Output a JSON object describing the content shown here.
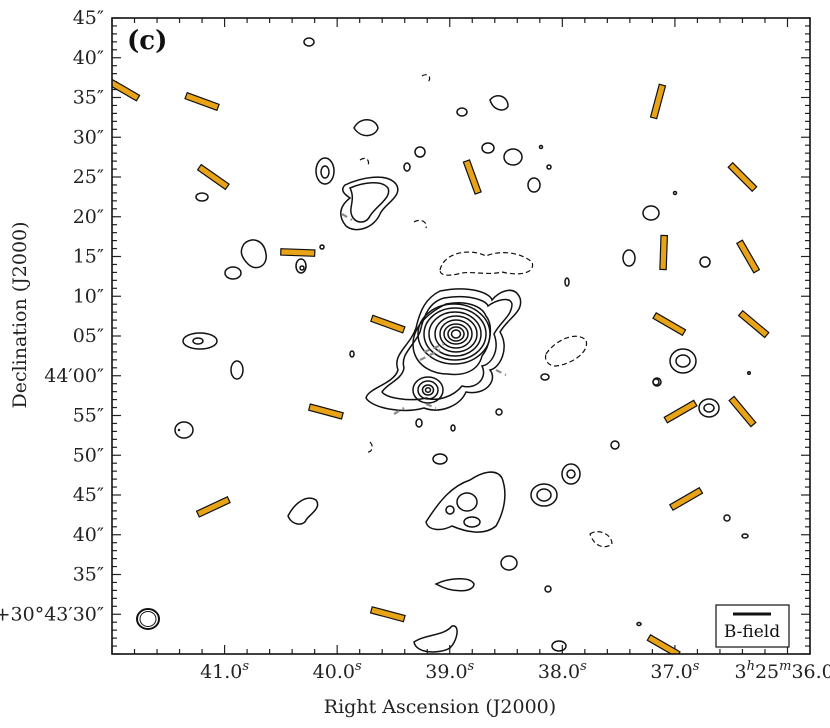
{
  "chart_data": {
    "type": "scatter",
    "panel_label": "(c)",
    "xlabel": "Right Ascension (J2000)",
    "ylabel": "Declination (J2000)",
    "x_ticks": [
      {
        "ra_s": 41.0,
        "label": "41.0",
        "sup": "s"
      },
      {
        "ra_s": 40.0,
        "label": "40.0",
        "sup": "s"
      },
      {
        "ra_s": 39.0,
        "label": "39.0",
        "sup": "s"
      },
      {
        "ra_s": 38.0,
        "label": "38.0",
        "sup": "s"
      },
      {
        "ra_s": 37.0,
        "label": "37.0",
        "sup": "s"
      },
      {
        "ra_s": 36.0,
        "label": "3h25m36.0s"
      }
    ],
    "y_ticks": [
      {
        "dec_arcsec": 45,
        "label": "45″"
      },
      {
        "dec_arcsec": 40,
        "label": "40″"
      },
      {
        "dec_arcsec": 35,
        "label": "35″"
      },
      {
        "dec_arcsec": 30,
        "label": "30″"
      },
      {
        "dec_arcsec": 25,
        "label": "25″"
      },
      {
        "dec_arcsec": 20,
        "label": "20″"
      },
      {
        "dec_arcsec": 15,
        "label": "15″"
      },
      {
        "dec_arcsec": 10,
        "label": "10″"
      },
      {
        "dec_arcsec": 5,
        "label": "05″"
      },
      {
        "dec_arcsec": 0,
        "label": "44′00″"
      },
      {
        "dec_arcsec": -5,
        "label": "55″"
      },
      {
        "dec_arcsec": -10,
        "label": "50″"
      },
      {
        "dec_arcsec": -15,
        "label": "45″"
      },
      {
        "dec_arcsec": -20,
        "label": "40″"
      },
      {
        "dec_arcsec": -25,
        "label": "35″"
      },
      {
        "dec_arcsec": -30,
        "label": "+30°43′30″"
      }
    ],
    "xlim": [
      42.0,
      35.8
    ],
    "ylim": [
      -35,
      45
    ],
    "legend": {
      "label": "B-field",
      "position": "bottom-right"
    },
    "vector_color": "#E8A317",
    "b_field_vectors": [
      {
        "ra_s": 41.9,
        "dec_arcsec": 36,
        "pa_deg": 60
      },
      {
        "ra_s": 41.2,
        "dec_arcsec": 34.5,
        "pa_deg": 70
      },
      {
        "ra_s": 41.1,
        "dec_arcsec": 25,
        "pa_deg": 55
      },
      {
        "ra_s": 40.35,
        "dec_arcsec": 15.5,
        "pa_deg": 88
      },
      {
        "ra_s": 39.55,
        "dec_arcsec": 6.5,
        "pa_deg": 70
      },
      {
        "ra_s": 40.1,
        "dec_arcsec": -4.5,
        "pa_deg": 75
      },
      {
        "ra_s": 41.1,
        "dec_arcsec": -16.5,
        "pa_deg": 115
      },
      {
        "ra_s": 39.55,
        "dec_arcsec": -30,
        "pa_deg": 75
      },
      {
        "ra_s": 38.8,
        "dec_arcsec": 25,
        "pa_deg": 20
      },
      {
        "ra_s": 37.15,
        "dec_arcsec": 34.5,
        "pa_deg": 165
      },
      {
        "ra_s": 37.1,
        "dec_arcsec": 15.5,
        "pa_deg": 178
      },
      {
        "ra_s": 37.05,
        "dec_arcsec": 6.5,
        "pa_deg": 60
      },
      {
        "ra_s": 36.95,
        "dec_arcsec": -4.5,
        "pa_deg": 120
      },
      {
        "ra_s": 36.9,
        "dec_arcsec": -15.5,
        "pa_deg": 120
      },
      {
        "ra_s": 36.4,
        "dec_arcsec": 25,
        "pa_deg": 45
      },
      {
        "ra_s": 36.35,
        "dec_arcsec": 15,
        "pa_deg": 30
      },
      {
        "ra_s": 36.3,
        "dec_arcsec": 6.5,
        "pa_deg": 50
      },
      {
        "ra_s": 36.4,
        "dec_arcsec": -4.5,
        "pa_deg": 40
      },
      {
        "ra_s": 37.1,
        "dec_arcsec": -34,
        "pa_deg": 60
      }
    ]
  }
}
